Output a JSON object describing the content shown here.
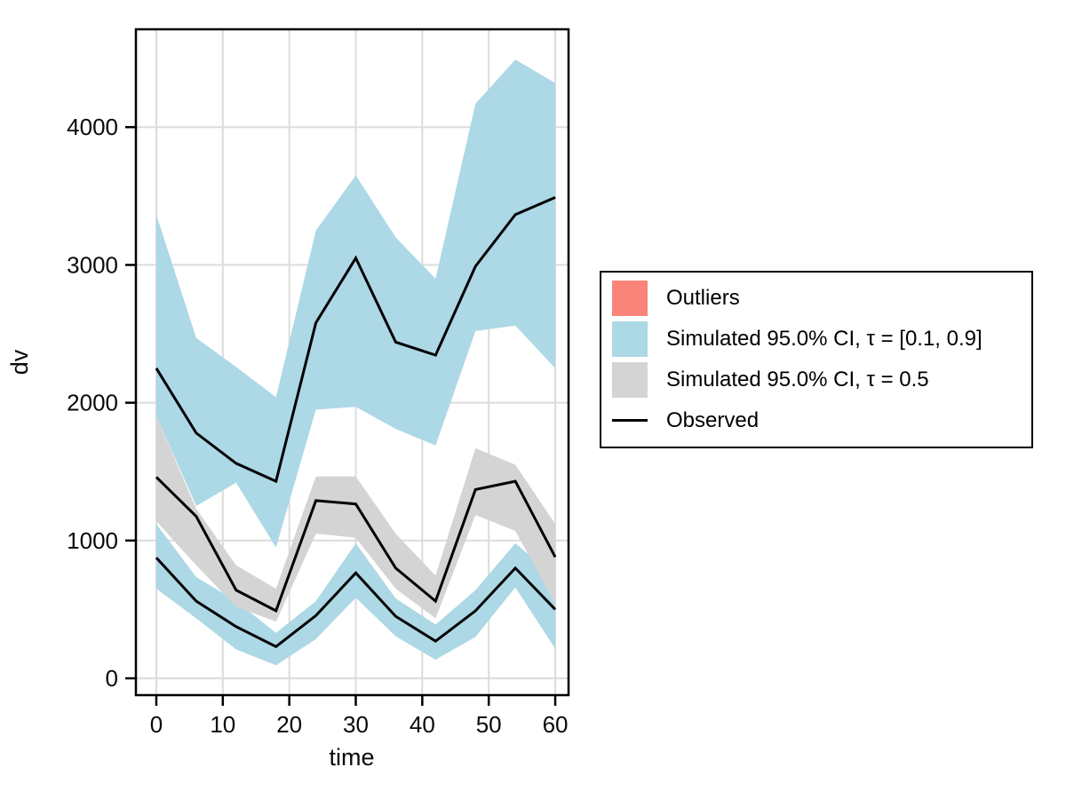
{
  "figure": {
    "background": "#ffffff"
  },
  "axes": {
    "xlabel": "time",
    "ylabel": "dv"
  },
  "legend": {
    "items": [
      {
        "label": "Outliers",
        "swatch": "patch",
        "color": "#FB847A"
      },
      {
        "label": "Simulated 95.0% CI, τ = [0.1, 0.9]",
        "swatch": "patch",
        "color": "#ADD8E6"
      },
      {
        "label": "Simulated 95.0% CI, τ = 0.5",
        "swatch": "patch",
        "color": "#D4D4D4"
      },
      {
        "label": "Observed",
        "swatch": "line",
        "color": "#000000"
      }
    ]
  },
  "chart_data": {
    "type": "line",
    "title": "",
    "xlabel": "time",
    "ylabel": "dv",
    "xlim": [
      -3.07,
      62.0
    ],
    "ylim": [
      -122,
      4710
    ],
    "x_ticks": [
      0,
      10,
      20,
      30,
      40,
      50,
      60
    ],
    "y_ticks": [
      0,
      1000,
      2000,
      3000,
      4000
    ],
    "grid": true,
    "grid_color": "#DCDCDC",
    "x": [
      0,
      6,
      12,
      18,
      24,
      30,
      36,
      42,
      48,
      54,
      60
    ],
    "bands": [
      {
        "name": "simulated-ci-tau-0.1-0.9-upper",
        "color": "#ADD8E6",
        "upper": [
          3365,
          2470,
          2260,
          2040,
          3250,
          3650,
          3200,
          2900,
          4170,
          4490,
          4320
        ],
        "lower": [
          1905,
          1250,
          1420,
          950,
          1950,
          1970,
          1810,
          1690,
          2520,
          2560,
          2250
        ]
      },
      {
        "name": "simulated-ci-tau-0.1-0.9-lower",
        "color": "#ADD8E6",
        "upper": [
          1120,
          735,
          560,
          330,
          560,
          980,
          580,
          390,
          640,
          980,
          735
        ],
        "lower": [
          650,
          435,
          210,
          95,
          285,
          585,
          305,
          135,
          300,
          660,
          215
        ]
      },
      {
        "name": "simulated-ci-tau-0.5",
        "color": "#D4D4D4",
        "upper": [
          1905,
          1230,
          820,
          650,
          1465,
          1465,
          1050,
          745,
          1670,
          1550,
          1120
        ],
        "lower": [
          1140,
          820,
          520,
          410,
          1050,
          1020,
          650,
          435,
          1185,
          1070,
          540
        ]
      }
    ],
    "series": [
      {
        "name": "observed-upper-quantile",
        "color": "#000000",
        "values": [
          2250,
          1780,
          1560,
          1430,
          2580,
          3050,
          2440,
          2345,
          2990,
          3365,
          3490
        ]
      },
      {
        "name": "observed-median",
        "color": "#000000",
        "values": [
          1460,
          1175,
          640,
          490,
          1290,
          1265,
          800,
          560,
          1370,
          1430,
          880
        ]
      },
      {
        "name": "observed-lower-quantile",
        "color": "#000000",
        "values": [
          875,
          560,
          375,
          230,
          455,
          765,
          450,
          270,
          490,
          800,
          500
        ]
      }
    ]
  }
}
